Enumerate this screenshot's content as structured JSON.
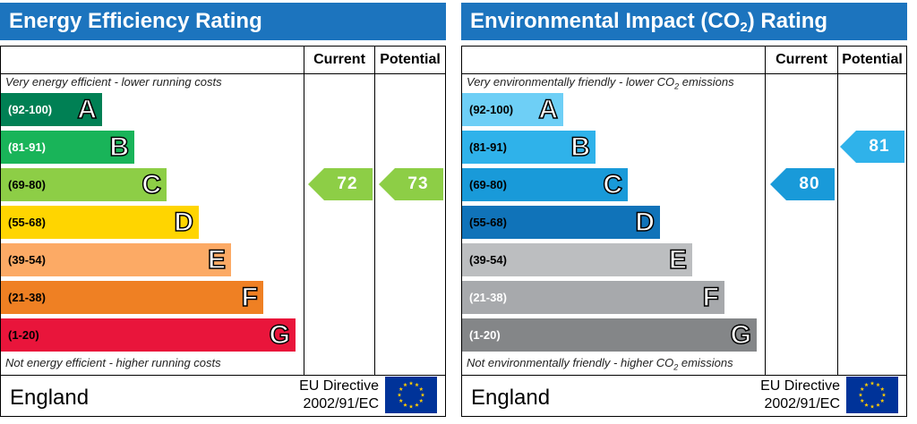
{
  "panels": [
    {
      "id": "energy",
      "title": "Energy Efficiency Rating",
      "title_sub": "",
      "title_after": "",
      "col_current": "Current",
      "col_potential": "Potential",
      "top_note": "Very energy efficient - lower running costs",
      "top_note_sub": "",
      "top_note_after": "",
      "bottom_note": "Not energy efficient - higher running costs",
      "bottom_note_sub": "",
      "bottom_note_after": "",
      "bands": [
        {
          "range": "(92-100)",
          "letter": "A",
          "color": "#008054",
          "text_color": "#ffffff"
        },
        {
          "range": "(81-91)",
          "letter": "B",
          "color": "#19b459",
          "text_color": "#ffffff"
        },
        {
          "range": "(69-80)",
          "letter": "C",
          "color": "#8dce46",
          "text_color": "#000000"
        },
        {
          "range": "(55-68)",
          "letter": "D",
          "color": "#ffd500",
          "text_color": "#000000"
        },
        {
          "range": "(39-54)",
          "letter": "E",
          "color": "#fcaa65",
          "text_color": "#000000"
        },
        {
          "range": "(21-38)",
          "letter": "F",
          "color": "#ef8023",
          "text_color": "#000000"
        },
        {
          "range": "(1-20)",
          "letter": "G",
          "color": "#e9153b",
          "text_color": "#000000"
        }
      ],
      "current": {
        "value": "72",
        "band": "C",
        "color": "#8dce46"
      },
      "potential": {
        "value": "73",
        "band": "C",
        "color": "#8dce46"
      },
      "region": "England",
      "directive_line1": "EU Directive",
      "directive_line2": "2002/91/EC"
    },
    {
      "id": "environmental",
      "title": "Environmental Impact (CO",
      "title_sub": "2",
      "title_after": ") Rating",
      "col_current": "Current",
      "col_potential": "Potential",
      "top_note": "Very environmentally friendly - lower CO",
      "top_note_sub": "2",
      "top_note_after": " emissions",
      "bottom_note": "Not environmentally friendly - higher CO",
      "bottom_note_sub": "2",
      "bottom_note_after": " emissions",
      "bands": [
        {
          "range": "(92-100)",
          "letter": "A",
          "color": "#6ecff6",
          "text_color": "#000000"
        },
        {
          "range": "(81-91)",
          "letter": "B",
          "color": "#2fb2ea",
          "text_color": "#000000"
        },
        {
          "range": "(69-80)",
          "letter": "C",
          "color": "#199ad9",
          "text_color": "#000000"
        },
        {
          "range": "(55-68)",
          "letter": "D",
          "color": "#1073b9",
          "text_color": "#000000"
        },
        {
          "range": "(39-54)",
          "letter": "E",
          "color": "#bcbec0",
          "text_color": "#000000"
        },
        {
          "range": "(21-38)",
          "letter": "F",
          "color": "#a7a9ac",
          "text_color": "#ffffff"
        },
        {
          "range": "(1-20)",
          "letter": "G",
          "color": "#848688",
          "text_color": "#ffffff"
        }
      ],
      "current": {
        "value": "80",
        "band": "C",
        "color": "#199ad9"
      },
      "potential": {
        "value": "81",
        "band": "B",
        "color": "#2fb2ea"
      },
      "region": "England",
      "directive_line1": "EU Directive",
      "directive_line2": "2002/91/EC"
    }
  ],
  "chart_data": [
    {
      "type": "bar",
      "title": "Energy Efficiency Rating",
      "categories": [
        "A",
        "B",
        "C",
        "D",
        "E",
        "F",
        "G"
      ],
      "ranges": [
        "(92-100)",
        "(81-91)",
        "(69-80)",
        "(55-68)",
        "(39-54)",
        "(21-38)",
        "(1-20)"
      ],
      "current": 72,
      "potential": 73
    },
    {
      "type": "bar",
      "title": "Environmental Impact (CO2) Rating",
      "categories": [
        "A",
        "B",
        "C",
        "D",
        "E",
        "F",
        "G"
      ],
      "ranges": [
        "(92-100)",
        "(81-91)",
        "(69-80)",
        "(55-68)",
        "(39-54)",
        "(21-38)",
        "(1-20)"
      ],
      "current": 80,
      "potential": 81
    }
  ]
}
